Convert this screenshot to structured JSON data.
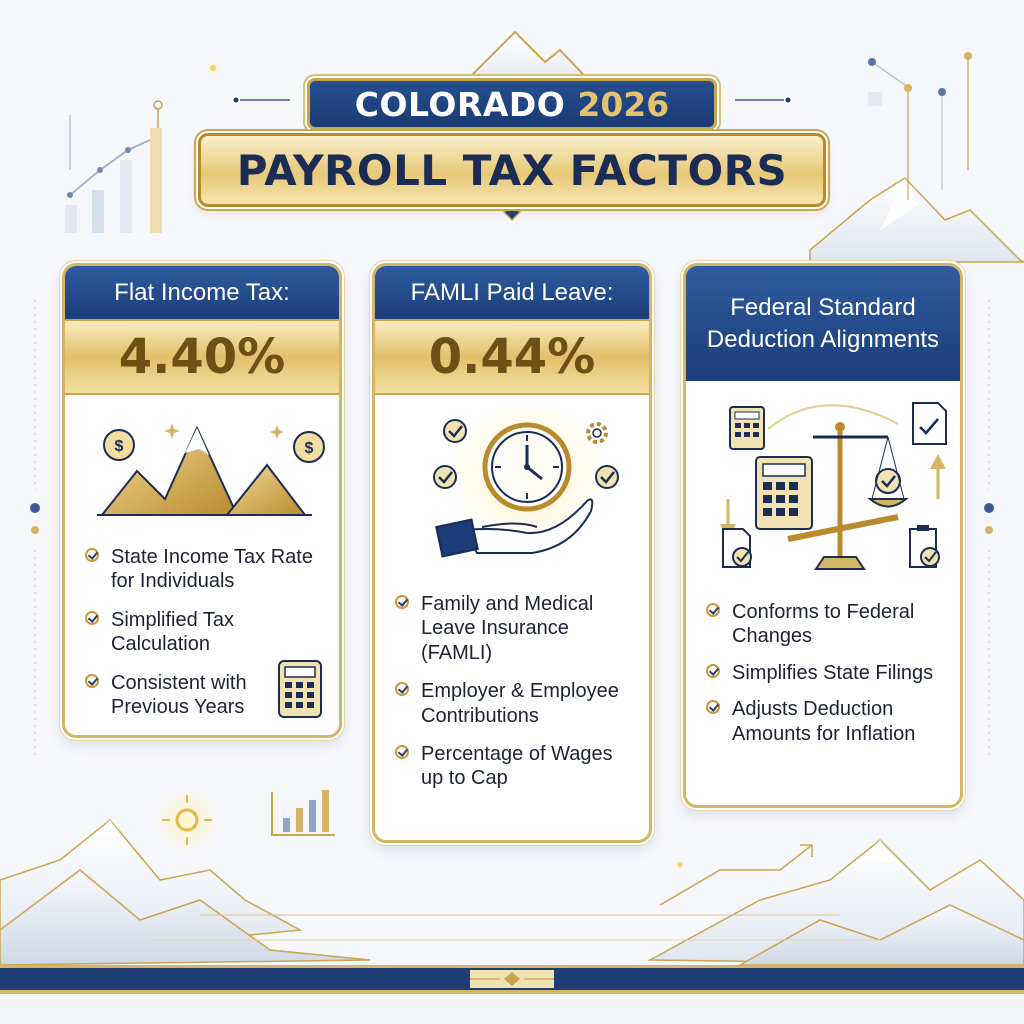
{
  "header": {
    "line1_text": "COLORADO",
    "line1_year": "2026",
    "line2": "PAYROLL TAX FACTORS"
  },
  "cards": [
    {
      "heading": "Flat Income Tax:",
      "rate": "4.40%",
      "illustration": "gold-mountains-with-dollar-coins",
      "bullets": [
        "State Income Tax Rate for Individuals",
        "Simplified Tax Calculation",
        "Consistent with Previous Years"
      ],
      "corner_icon": "calculator-icon"
    },
    {
      "heading": "FAMLI Paid Leave:",
      "rate": "0.44%",
      "illustration": "hand-holding-clock-with-checkmarks",
      "bullets": [
        "Family and Medical Leave Insurance (FAMLI)",
        "Employer & Employee Contributions",
        "Percentage of Wages up to Cap"
      ]
    },
    {
      "heading": "Federal Standard Deduction Alignments",
      "illustration": "balance-scale-with-calculators-and-documents",
      "bullets": [
        "Conforms to Federal Changes",
        "Simplifies State Filings",
        "Adjusts Deduction Amounts for Inflation"
      ]
    }
  ],
  "colors": {
    "navy": "#1b3d78",
    "gold": "#d4b565",
    "gold_dark": "#6e5016",
    "background": "#f6f7fb"
  }
}
